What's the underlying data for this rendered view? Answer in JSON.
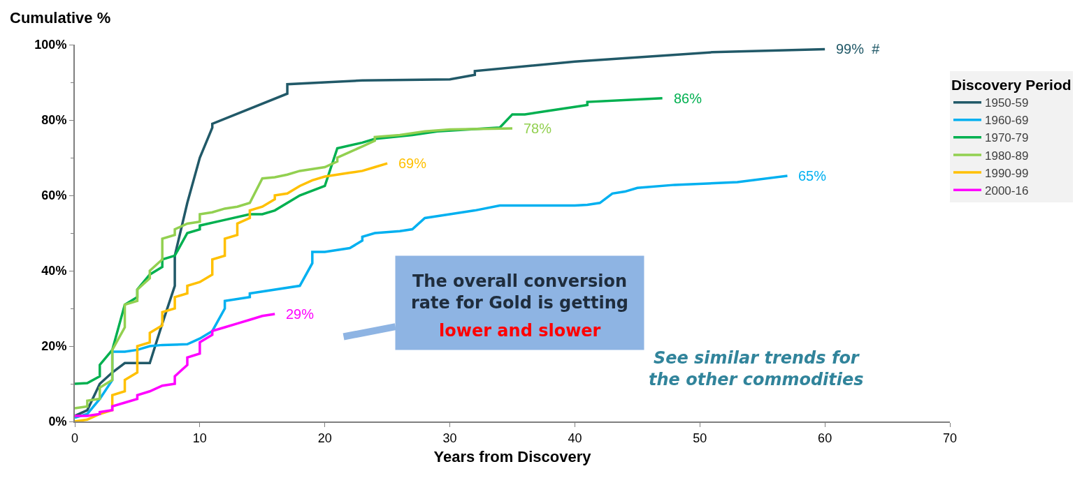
{
  "chart_data": {
    "type": "line",
    "ylabel": "Cumulative %",
    "xlabel": "Years from Discovery",
    "legend_title": "Discovery Period",
    "legend": "right",
    "grid": false,
    "marker": "none",
    "line_style": "solid",
    "xlim": [
      0,
      70
    ],
    "xticks": [
      0,
      10,
      20,
      30,
      40,
      50,
      60,
      70
    ],
    "ylim": [
      0,
      100
    ],
    "yticks": [
      {
        "value": 0,
        "label": "0%"
      },
      {
        "value": 20,
        "label": "20%"
      },
      {
        "value": 40,
        "label": "40%"
      },
      {
        "value": 60,
        "label": "60%"
      },
      {
        "value": 80,
        "label": "80%"
      },
      {
        "value": 100,
        "label": "100%"
      }
    ],
    "series": [
      {
        "name": "1950-59",
        "color": "#215968",
        "x": [
          0,
          1,
          2,
          3,
          4,
          6,
          7,
          8,
          8,
          9,
          10,
          11,
          11,
          17,
          17,
          20,
          23,
          30,
          32,
          32,
          40,
          51,
          60
        ],
        "values": [
          1.5,
          3,
          10,
          13,
          15.5,
          15.5,
          26,
          36,
          44,
          58,
          70,
          78,
          79,
          87,
          89.5,
          90,
          90.5,
          90.8,
          92,
          93,
          95.5,
          98,
          98.8
        ]
      },
      {
        "name": "1960-69",
        "color": "#00b0f0",
        "x": [
          0,
          1,
          2,
          3,
          3,
          4,
          5,
          6,
          7,
          9,
          10,
          11,
          12,
          12,
          14,
          14,
          18,
          19,
          19,
          20,
          22,
          23,
          23,
          24,
          26,
          27,
          28,
          30,
          32,
          34,
          40,
          41,
          42,
          43,
          44,
          45,
          48,
          53,
          57
        ],
        "values": [
          1,
          2,
          6,
          11,
          18.5,
          18.5,
          19,
          20,
          20.3,
          20.5,
          22,
          24,
          30,
          32,
          33,
          34,
          36,
          42,
          45,
          45,
          46,
          48,
          49,
          50,
          50.5,
          51,
          54,
          55,
          56,
          57.3,
          57.3,
          57.5,
          58,
          60.5,
          61,
          62,
          62.8,
          63.5,
          65.2
        ]
      },
      {
        "name": "1970-79",
        "color": "#00b050",
        "x": [
          0,
          1,
          2,
          2,
          3,
          4,
          5,
          5,
          6,
          7,
          7,
          8,
          9,
          10,
          10,
          12,
          14,
          15,
          16,
          18,
          20,
          21,
          23,
          24,
          27,
          29,
          34,
          35,
          36,
          38,
          41,
          41,
          47
        ],
        "values": [
          10,
          10.2,
          12,
          15,
          19,
          31,
          33,
          35,
          39,
          41,
          43,
          44,
          50,
          51,
          52,
          53.5,
          55,
          55,
          56,
          60,
          62.5,
          72.5,
          74,
          75,
          76,
          77,
          78,
          81.5,
          81.5,
          82.5,
          84,
          84.8,
          85.8
        ]
      },
      {
        "name": "1980-89",
        "color": "#92d050",
        "x": [
          0,
          1,
          1,
          2,
          2,
          3,
          3,
          4,
          4,
          5,
          5,
          6,
          6,
          7,
          7,
          8,
          8,
          9,
          10,
          10,
          11,
          12,
          13,
          14,
          15,
          16,
          17,
          18,
          19,
          20,
          21,
          21,
          22,
          23,
          24,
          24,
          26,
          28,
          30,
          35
        ],
        "values": [
          3.5,
          4,
          5.5,
          6,
          9,
          11,
          19,
          25,
          31,
          32,
          35,
          38,
          40,
          43,
          48.5,
          49.5,
          51,
          52.5,
          53,
          55,
          55.5,
          56.5,
          57,
          58,
          64.5,
          64.8,
          65.5,
          66.5,
          67,
          67.5,
          69,
          70,
          71.5,
          73,
          74.5,
          75.5,
          76,
          77,
          77.5,
          77.8
        ]
      },
      {
        "name": "1990-99",
        "color": "#ffc000",
        "x": [
          0,
          1,
          2,
          3,
          3,
          4,
          4,
          5,
          5,
          6,
          6,
          7,
          7,
          8,
          8,
          9,
          9,
          10,
          11,
          11,
          12,
          12,
          13,
          13,
          14,
          14,
          15,
          16,
          16,
          17,
          18,
          19,
          20,
          21,
          22,
          23,
          24,
          25
        ],
        "values": [
          0,
          0.5,
          2,
          3,
          7,
          8,
          11,
          13,
          20,
          21,
          23.5,
          25.5,
          29,
          30,
          33,
          34,
          36,
          37,
          39,
          43,
          44,
          48.5,
          49.5,
          52.5,
          54,
          56,
          57,
          59,
          60,
          60.5,
          62.5,
          64,
          65,
          65.5,
          66,
          66.5,
          67.5,
          68.5
        ]
      },
      {
        "name": "2000-16",
        "color": "#ff00ff",
        "x": [
          0,
          1,
          2,
          2,
          3,
          3,
          4,
          5,
          5,
          6,
          7,
          8,
          8,
          9,
          9,
          10,
          10,
          11,
          11,
          12,
          13,
          14,
          15,
          16
        ],
        "values": [
          1.5,
          1.5,
          2,
          2.5,
          3,
          4,
          5,
          6,
          7,
          8,
          9.5,
          10,
          12,
          15,
          17,
          18,
          21,
          23,
          24,
          25,
          26,
          27,
          28,
          28.5
        ]
      }
    ],
    "annotations": [
      {
        "text": "99%  #",
        "x": 60,
        "y": 98.8
      },
      {
        "text": "65%",
        "x": 57,
        "y": 65.2
      },
      {
        "text": "86%",
        "x": 47,
        "y": 85.8
      },
      {
        "text": "78%",
        "x": 35,
        "y": 77.8
      },
      {
        "text": "69%",
        "x": 25,
        "y": 68.5
      },
      {
        "text": "29%",
        "x": 16,
        "y": 28.5
      },
      "The overall conversion\nrate for Gold is getting",
      "lower and slower",
      "See similar trends for\nthe other commodities"
    ]
  }
}
